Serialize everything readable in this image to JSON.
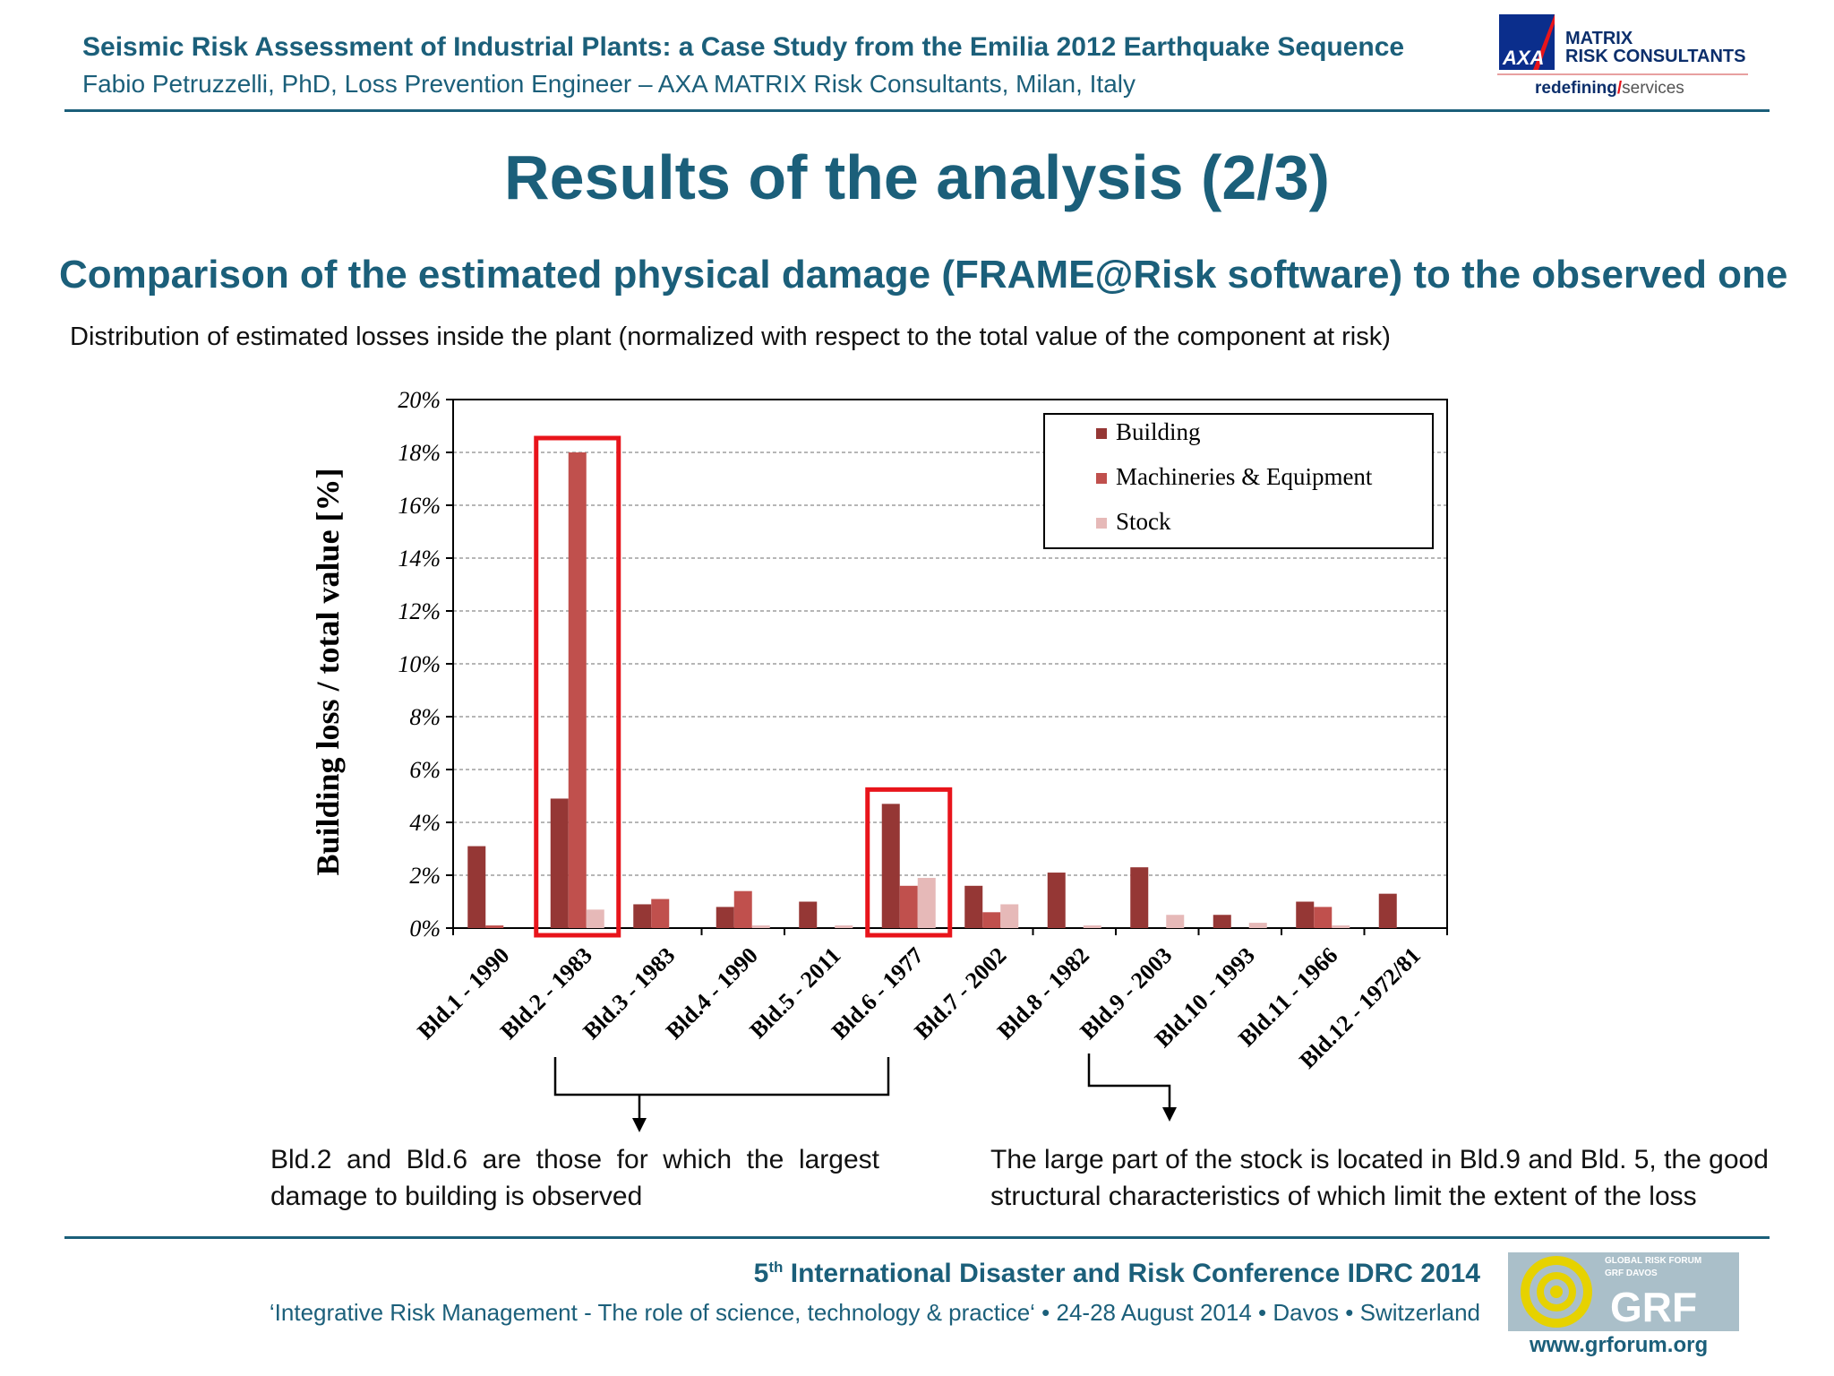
{
  "header": {
    "title": "Seismic Risk Assessment of Industrial Plants: a Case Study from the Emilia 2012 Earthquake Sequence",
    "subtitle": "Fabio Petruzzelli, PhD, Loss Prevention Engineer  –  AXA MATRIX Risk Consultants, Milan, Italy",
    "logo": {
      "brand": "AXA",
      "line1": "MATRIX",
      "line2": "RISK CONSULTANTS",
      "tag_bold": "redefining",
      "tag_slash": "/",
      "tag_light": "services"
    }
  },
  "slide_title": "Results of the analysis (2/3)",
  "section_title": "Comparison of the estimated physical damage (FRAME@Risk software)  to the observed one",
  "description": "Distribution of estimated losses inside the plant  (normalized with respect to the total value of the component at risk)",
  "chart_data": {
    "type": "bar",
    "ylabel": "Building loss / total value [%]",
    "ylim": [
      0,
      20
    ],
    "yticks": [
      "0%",
      "2%",
      "4%",
      "6%",
      "8%",
      "10%",
      "12%",
      "14%",
      "16%",
      "18%",
      "20%"
    ],
    "grid": true,
    "legend_position": "top-right",
    "categories": [
      "Bld.1 - 1990",
      "Bld.2 - 1983",
      "Bld.3 - 1983",
      "Bld.4 - 1990",
      "Bld.5 - 2011",
      "Bld.6 - 1977",
      "Bld.7 - 2002",
      "Bld.8 - 1982",
      "Bld.9 - 2003",
      "Bld.10 - 1993",
      "Bld.11 - 1966",
      "Bld.12 - 1972/81"
    ],
    "series": [
      {
        "name": "Building",
        "color": "#953735",
        "values": [
          3.1,
          4.9,
          0.9,
          0.8,
          1.0,
          4.7,
          1.6,
          2.1,
          2.3,
          0.5,
          1.0,
          1.3
        ]
      },
      {
        "name": "Machineries & Equipment",
        "color": "#c0504d",
        "values": [
          0.1,
          18.0,
          1.1,
          1.4,
          0.0,
          1.6,
          0.6,
          0.0,
          0.0,
          0.0,
          0.8,
          0.0
        ]
      },
      {
        "name": "Stock",
        "color": "#e6b9b8",
        "values": [
          0.0,
          0.7,
          0.0,
          0.1,
          0.1,
          1.9,
          0.9,
          0.1,
          0.5,
          0.2,
          0.1,
          0.0
        ]
      }
    ],
    "highlight_categories": [
      "Bld.2 - 1983",
      "Bld.6 - 1977"
    ],
    "highlight_color": "#e8141b"
  },
  "notes": {
    "left": "Bld.2 and Bld.6 are those for which the largest damage to building is observed",
    "right": "The large part of the stock is located in Bld.9 and Bld. 5, the good structural characteristics of which limit the extent of the loss"
  },
  "footer": {
    "conference_prefix": "5",
    "conference_sup": "th",
    "conference_rest": " International Disaster and Risk Conference IDRC 2014",
    "tagline": "‘Integrative Risk Management - The role of science, technology & practice‘ • 24-28 August 2014 • Davos • Switzerland",
    "grf_logo": {
      "line1": "GLOBAL RISK FORUM",
      "line2": "GRF DAVOS",
      "mark": "GRF"
    },
    "website": "www.grforum.org"
  }
}
